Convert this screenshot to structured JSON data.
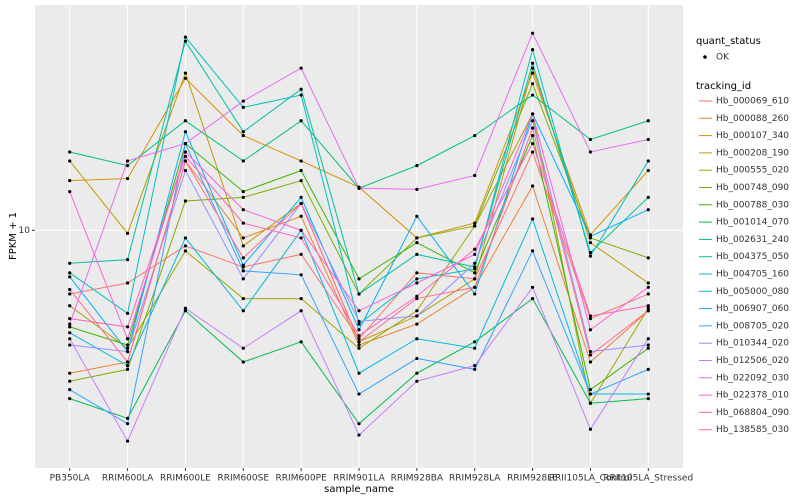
{
  "chart_data": {
    "type": "line",
    "xlabel": "sample_name",
    "ylabel": "FPKM + 1",
    "yscale": "log",
    "ylim": [
      2,
      46
    ],
    "yticks": [
      10
    ],
    "grid": true,
    "point_legend_title": "quant_status",
    "point_legend_label": "OK",
    "point_color": "#000000",
    "legend_title": "tracking_id",
    "legend_position": "right",
    "categories": [
      "PB350LA",
      "RRIM600LA",
      "RRIM600LE",
      "RRIM600SE",
      "RRIM600PE",
      "RRIM901LA",
      "RRIM928BA",
      "RRIM928LA",
      "RRIM928LE",
      "RRII105LA_Control",
      "RRII105LA_Stressed"
    ],
    "series": [
      {
        "name": "Hb_000069_610",
        "color": "#F8766D",
        "values": [
          6.5,
          7,
          9,
          7.8,
          8.5,
          4.8,
          7.5,
          7.2,
          17,
          5.5,
          6.5
        ]
      },
      {
        "name": "Hb_000088_260",
        "color": "#EA8331",
        "values": [
          3.8,
          4.1,
          16,
          9.5,
          11,
          4.6,
          5.3,
          6.8,
          13.5,
          4.1,
          5.8
        ]
      },
      {
        "name": "Hb_000107_340",
        "color": "#D89000",
        "values": [
          14,
          14.2,
          28,
          19,
          16,
          13.4,
          9.5,
          10.5,
          29,
          9.7,
          15
        ]
      },
      {
        "name": "Hb_000208_190",
        "color": "#C09B00",
        "values": [
          16,
          9.8,
          29,
          9,
          12,
          4.7,
          5.6,
          7.2,
          30,
          9.2,
          7
        ]
      },
      {
        "name": "Hb_000555_020",
        "color": "#A3A500",
        "values": [
          6,
          4.5,
          8.7,
          6.3,
          6.3,
          4.5,
          5.8,
          10.3,
          22,
          3.1,
          5.9
        ]
      },
      {
        "name": "Hb_000748_090",
        "color": "#7CAE00",
        "values": [
          3.6,
          3.9,
          12.2,
          12.5,
          14,
          6.5,
          9.5,
          10.3,
          27,
          9.5,
          8.3
        ]
      },
      {
        "name": "Hb_000788_030",
        "color": "#39B600",
        "values": [
          5.2,
          4.6,
          18,
          13,
          15,
          7.2,
          9.2,
          7.5,
          19,
          3.4,
          4.5
        ]
      },
      {
        "name": "Hb_001014_070",
        "color": "#00BB4E",
        "values": [
          3.2,
          2.8,
          5.8,
          4.1,
          4.7,
          2.7,
          3.8,
          4.7,
          6.3,
          3.1,
          3.2
        ]
      },
      {
        "name": "Hb_002631_240",
        "color": "#00BF7D",
        "values": [
          17,
          15.5,
          21,
          16,
          21,
          13.3,
          15.5,
          19,
          25,
          18.5,
          21
        ]
      },
      {
        "name": "Hb_004375_050",
        "color": "#00C1A3",
        "values": [
          8,
          8.2,
          36,
          19.5,
          26,
          6.5,
          8.5,
          7.8,
          31,
          8.6,
          12.5
        ]
      },
      {
        "name": "Hb_004705_160",
        "color": "#00BFC4",
        "values": [
          7.5,
          5.7,
          37,
          23,
          25,
          5.3,
          7.2,
          7.7,
          34,
          8.4,
          16
        ]
      },
      {
        "name": "Hb_005000_080",
        "color": "#00BAE0",
        "values": [
          5,
          4,
          9.5,
          5.8,
          10,
          3.8,
          4.8,
          4.5,
          10.8,
          3.3,
          3.3
        ]
      },
      {
        "name": "Hb_006907_060",
        "color": "#00B0F6",
        "values": [
          7.3,
          4.4,
          19.5,
          7.9,
          12.5,
          5.1,
          11,
          6.5,
          22,
          9.6,
          11.5
        ]
      },
      {
        "name": "Hb_008705_020",
        "color": "#35A2FF",
        "values": [
          3.4,
          2.7,
          18,
          7.6,
          7.4,
          3.3,
          4.2,
          3.9,
          8.7,
          3.3,
          3.9
        ]
      },
      {
        "name": "Hb_010344_020",
        "color": "#9590FF",
        "values": [
          4.6,
          4.4,
          15,
          7.2,
          12,
          5.4,
          5.6,
          8,
          21,
          4.4,
          4.6
        ]
      },
      {
        "name": "Hb_012506_020",
        "color": "#C77CFF",
        "values": [
          4.8,
          2.4,
          5.9,
          4.5,
          5.8,
          2.5,
          3.6,
          4,
          6.8,
          2.6,
          4.8
        ]
      },
      {
        "name": "Hb_022092_030",
        "color": "#E76BF3",
        "values": [
          5.3,
          16,
          18,
          24,
          30,
          13.3,
          13.2,
          14.5,
          38,
          17,
          18.5
        ]
      },
      {
        "name": "Hb_022378_010",
        "color": "#FA62DB",
        "values": [
          13,
          4.8,
          17,
          11.5,
          10,
          5.8,
          7,
          8.5,
          22,
          5.1,
          6.8
        ]
      },
      {
        "name": "Hb_068804_090",
        "color": "#FF62BC",
        "values": [
          5.5,
          5.2,
          16.5,
          10.5,
          9.5,
          4.9,
          6.4,
          8.8,
          18,
          5.6,
          6
        ]
      },
      {
        "name": "Hb_138585_030",
        "color": "#FF6C91",
        "values": [
          6.7,
          4.1,
          16,
          8.3,
          12,
          4.7,
          6.3,
          6.8,
          20,
          4.3,
          5.8
        ]
      }
    ]
  }
}
